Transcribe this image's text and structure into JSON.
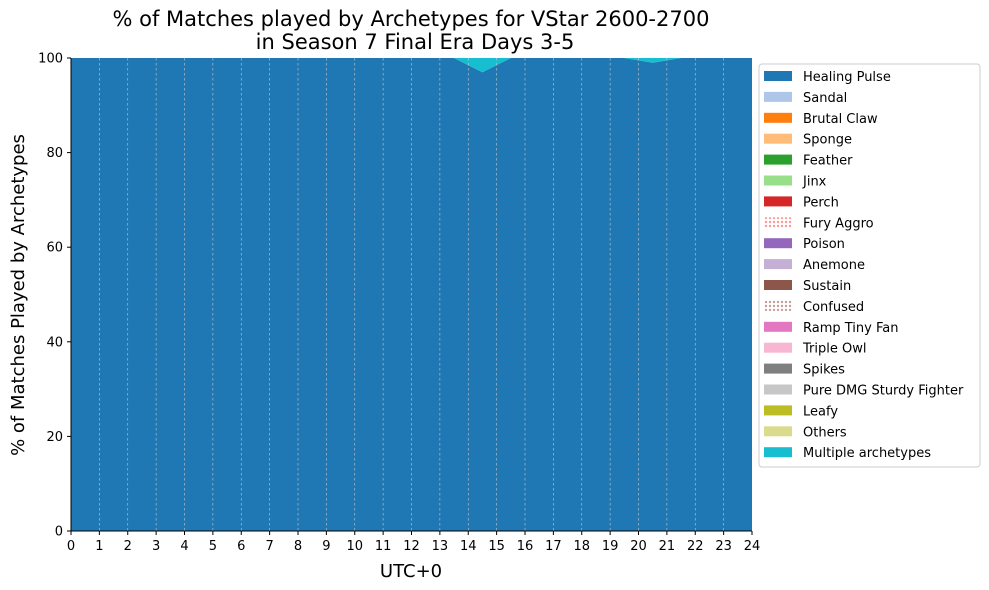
{
  "chart_data": {
    "type": "area",
    "title_line1": "% of Matches played by Archetypes for VStar 2600-2700",
    "title_line2": "in Season 7 Final Era Days 3-5",
    "xlabel": "UTC+0",
    "ylabel": "% of Matches Played by Archetypes",
    "xlim": [
      0,
      24
    ],
    "ylim": [
      0,
      100
    ],
    "x_ticks": [
      "0",
      "1",
      "2",
      "3",
      "4",
      "5",
      "6",
      "7",
      "8",
      "9",
      "10",
      "11",
      "12",
      "13",
      "14",
      "15",
      "16",
      "17",
      "18",
      "19",
      "20",
      "21",
      "22",
      "23",
      "24"
    ],
    "y_ticks": [
      "0",
      "20",
      "40",
      "60",
      "80",
      "100"
    ],
    "grid": "vertical dashed",
    "legend_position": "right",
    "x": [
      0.5,
      1.5,
      2.5,
      3.5,
      4.5,
      5.5,
      6.5,
      7.5,
      8.5,
      9.5,
      10.5,
      11.5,
      12.5,
      13.5,
      14.5,
      15.5,
      16.5,
      17.5,
      18.5,
      19.5,
      20.5,
      21.5,
      22.5,
      23.5
    ],
    "series": [
      {
        "name": "Healing Pulse",
        "color": "#1f77b4",
        "pattern": "solid",
        "values": [
          100,
          100,
          100,
          100,
          100,
          100,
          100,
          100,
          100,
          100,
          100,
          100,
          100,
          100,
          97,
          100,
          100,
          100,
          100,
          100,
          99,
          100,
          100,
          100
        ]
      },
      {
        "name": "Sandal",
        "color": "#aec7e8",
        "pattern": "solid",
        "values": [
          0,
          0,
          0,
          0,
          0,
          0,
          0,
          0,
          0,
          0,
          0,
          0,
          0,
          0,
          0,
          0,
          0,
          0,
          0,
          0,
          0,
          0,
          0,
          0
        ]
      },
      {
        "name": "Brutal Claw",
        "color": "#ff7f0e",
        "pattern": "solid",
        "values": [
          0,
          0,
          0,
          0,
          0,
          0,
          0,
          0,
          0,
          0,
          0,
          0,
          0,
          0,
          0,
          0,
          0,
          0,
          0,
          0,
          0,
          0,
          0,
          0
        ]
      },
      {
        "name": "Sponge",
        "color": "#ffbb78",
        "pattern": "solid",
        "values": [
          0,
          0,
          0,
          0,
          0,
          0,
          0,
          0,
          0,
          0,
          0,
          0,
          0,
          0,
          0,
          0,
          0,
          0,
          0,
          0,
          0,
          0,
          0,
          0
        ]
      },
      {
        "name": "Feather",
        "color": "#2ca02c",
        "pattern": "solid",
        "values": [
          0,
          0,
          0,
          0,
          0,
          0,
          0,
          0,
          0,
          0,
          0,
          0,
          0,
          0,
          0,
          0,
          0,
          0,
          0,
          0,
          0,
          0,
          0,
          0
        ]
      },
      {
        "name": "Jinx",
        "color": "#98df8a",
        "pattern": "solid",
        "values": [
          0,
          0,
          0,
          0,
          0,
          0,
          0,
          0,
          0,
          0,
          0,
          0,
          0,
          0,
          0,
          0,
          0,
          0,
          0,
          0,
          0,
          0,
          0,
          0
        ]
      },
      {
        "name": "Perch",
        "color": "#d62728",
        "pattern": "solid",
        "values": [
          0,
          0,
          0,
          0,
          0,
          0,
          0,
          0,
          0,
          0,
          0,
          0,
          0,
          0,
          0,
          0,
          0,
          0,
          0,
          0,
          0,
          0,
          0,
          0
        ]
      },
      {
        "name": "Fury Aggro",
        "color": "#ff9896",
        "pattern": "dots",
        "values": [
          0,
          0,
          0,
          0,
          0,
          0,
          0,
          0,
          0,
          0,
          0,
          0,
          0,
          0,
          0,
          0,
          0,
          0,
          0,
          0,
          0,
          0,
          0,
          0
        ]
      },
      {
        "name": "Poison",
        "color": "#9467bd",
        "pattern": "solid",
        "values": [
          0,
          0,
          0,
          0,
          0,
          0,
          0,
          0,
          0,
          0,
          0,
          0,
          0,
          0,
          0,
          0,
          0,
          0,
          0,
          0,
          0,
          0,
          0,
          0
        ]
      },
      {
        "name": "Anemone",
        "color": "#c5b0d5",
        "pattern": "solid",
        "values": [
          0,
          0,
          0,
          0,
          0,
          0,
          0,
          0,
          0,
          0,
          0,
          0,
          0,
          0,
          0,
          0,
          0,
          0,
          0,
          0,
          0,
          0,
          0,
          0
        ]
      },
      {
        "name": "Sustain",
        "color": "#8c564b",
        "pattern": "solid",
        "values": [
          0,
          0,
          0,
          0,
          0,
          0,
          0,
          0,
          0,
          0,
          0,
          0,
          0,
          0,
          0,
          0,
          0,
          0,
          0,
          0,
          0,
          0,
          0,
          0
        ]
      },
      {
        "name": "Confused",
        "color": "#c49c94",
        "pattern": "dots",
        "values": [
          0,
          0,
          0,
          0,
          0,
          0,
          0,
          0,
          0,
          0,
          0,
          0,
          0,
          0,
          0,
          0,
          0,
          0,
          0,
          0,
          0,
          0,
          0,
          0
        ]
      },
      {
        "name": "Ramp Tiny Fan",
        "color": "#e377c2",
        "pattern": "solid",
        "values": [
          0,
          0,
          0,
          0,
          0,
          0,
          0,
          0,
          0,
          0,
          0,
          0,
          0,
          0,
          0,
          0,
          0,
          0,
          0,
          0,
          0,
          0,
          0,
          0
        ]
      },
      {
        "name": "Triple Owl",
        "color": "#f7b6d2",
        "pattern": "solid",
        "values": [
          0,
          0,
          0,
          0,
          0,
          0,
          0,
          0,
          0,
          0,
          0,
          0,
          0,
          0,
          0,
          0,
          0,
          0,
          0,
          0,
          0,
          0,
          0,
          0
        ]
      },
      {
        "name": "Spikes",
        "color": "#7f7f7f",
        "pattern": "solid",
        "values": [
          0,
          0,
          0,
          0,
          0,
          0,
          0,
          0,
          0,
          0,
          0,
          0,
          0,
          0,
          0,
          0,
          0,
          0,
          0,
          0,
          0,
          0,
          0,
          0
        ]
      },
      {
        "name": "Pure DMG Sturdy Fighter",
        "color": "#c7c7c7",
        "pattern": "solid",
        "values": [
          0,
          0,
          0,
          0,
          0,
          0,
          0,
          0,
          0,
          0,
          0,
          0,
          0,
          0,
          0,
          0,
          0,
          0,
          0,
          0,
          0,
          0,
          0,
          0
        ]
      },
      {
        "name": "Leafy",
        "color": "#bcbd22",
        "pattern": "solid",
        "values": [
          0,
          0,
          0,
          0,
          0,
          0,
          0,
          0,
          0,
          0,
          0,
          0,
          0,
          0,
          0,
          0,
          0,
          0,
          0,
          0,
          0,
          0,
          0,
          0
        ]
      },
      {
        "name": "Others",
        "color": "#dbdb8d",
        "pattern": "solid",
        "values": [
          0,
          0,
          0,
          0,
          0,
          0,
          0,
          0,
          0,
          0,
          0,
          0,
          0,
          0,
          0,
          0,
          0,
          0,
          0,
          0,
          0,
          0,
          0,
          0
        ]
      },
      {
        "name": "Multiple archetypes",
        "color": "#17becf",
        "pattern": "solid",
        "values": [
          0,
          0,
          0,
          0,
          0,
          0,
          0,
          0,
          0,
          0,
          0,
          0,
          0,
          0,
          3,
          0,
          0,
          0,
          0,
          0,
          1,
          0,
          0,
          0
        ]
      }
    ]
  }
}
